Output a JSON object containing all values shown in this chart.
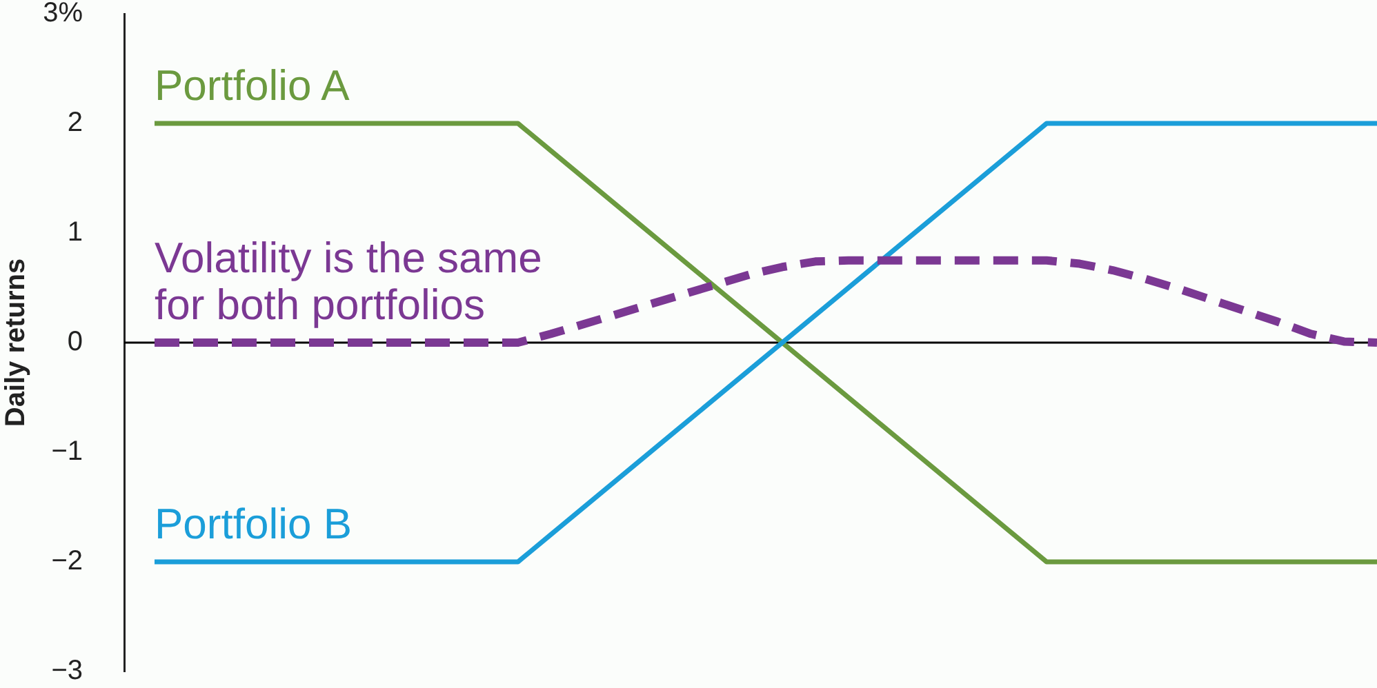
{
  "chart_data": {
    "type": "line",
    "ylabel": "Daily returns",
    "categories": [
      null,
      null,
      null,
      null,
      null,
      null,
      null,
      null,
      null,
      null,
      null,
      null,
      null,
      null,
      null,
      null,
      null,
      null,
      null,
      null,
      null,
      null,
      null,
      null,
      null,
      null,
      null,
      null,
      null,
      null,
      null,
      null,
      null,
      null,
      null,
      null,
      null,
      null
    ],
    "series": [
      {
        "name": "Portfolio A",
        "color": "#6b9a3f",
        "line_style": "solid",
        "values": [
          2,
          2,
          2,
          2,
          2,
          2,
          2,
          2,
          2,
          2,
          2,
          2,
          1.75,
          1.5,
          1.25,
          1,
          0.75,
          0.5,
          0.25,
          0,
          -0.25,
          -0.5,
          -0.75,
          -1,
          -1.25,
          -1.5,
          -1.75,
          -2,
          -2,
          -2,
          -2,
          -2,
          -2,
          -2,
          -2,
          -2,
          -2,
          -2
        ]
      },
      {
        "name": "Portfolio B",
        "color": "#1b9ed9",
        "line_style": "solid",
        "values": [
          -2,
          -2,
          -2,
          -2,
          -2,
          -2,
          -2,
          -2,
          -2,
          -2,
          -2,
          -2,
          -1.75,
          -1.5,
          -1.25,
          -1,
          -0.75,
          -0.5,
          -0.25,
          0,
          0.25,
          0.5,
          0.75,
          1,
          1.25,
          1.5,
          1.75,
          2,
          2,
          2,
          2,
          2,
          2,
          2,
          2,
          2,
          2,
          2
        ]
      },
      {
        "name": "Volatility is the same for both portfolios",
        "color": "#7b3893",
        "line_style": "dashed",
        "values": [
          0,
          0,
          0,
          0,
          0,
          0,
          0,
          0,
          0,
          0,
          0,
          0,
          0.08,
          0.17,
          0.26,
          0.35,
          0.44,
          0.53,
          0.62,
          0.69,
          0.74,
          0.75,
          0.75,
          0.75,
          0.75,
          0.75,
          0.75,
          0.75,
          0.72,
          0.66,
          0.58,
          0.49,
          0.39,
          0.29,
          0.19,
          0.08,
          0.01,
          0
        ]
      }
    ],
    "ylim": [
      -3,
      3
    ],
    "yticks": [
      {
        "value": 3,
        "label": "3%"
      },
      2,
      1,
      0,
      {
        "value": -1,
        "label": "−1"
      },
      {
        "value": -2,
        "label": "−2"
      },
      {
        "value": -3,
        "label": "−3"
      }
    ],
    "ref_lines": [
      {
        "axis": "y",
        "value": 0,
        "color": "#000000"
      }
    ],
    "grid": false,
    "legend": false,
    "marker": "none"
  }
}
